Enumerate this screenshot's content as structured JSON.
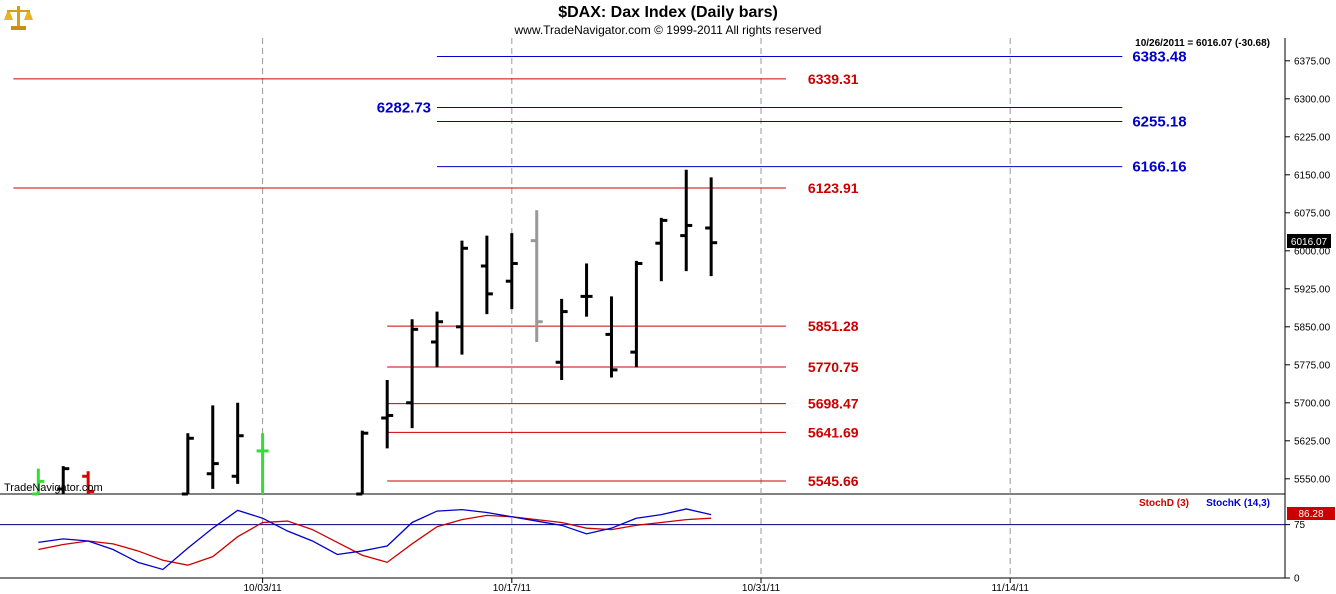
{
  "colors": {
    "background": "#ffffff",
    "red_level": "#cc0000",
    "blue_level": "#0000cc",
    "bar": "#000000",
    "bar_gray": "#999999",
    "up_tick": "#33dd33",
    "down_tick": "#dd0000",
    "stoch_d": "#cc0000",
    "stoch_k": "#0000cc",
    "grid": "#999999",
    "logo": "#d4a017"
  },
  "icons": {
    "logo": "scale-logo-icon"
  },
  "header": {
    "title": "$DAX:  Dax Index  (Daily bars)",
    "copyright": "www.TradeNavigator.com © 1999-2011 All rights reserved",
    "last_info": "10/26/2011 = 6016.07 (-30.68)"
  },
  "watermark": "TradeNavigator.com",
  "price_badge": "6016.07",
  "stoch_badge": "86.28",
  "chart_data": {
    "type": "ohlc",
    "title": "$DAX:  Dax Index  (Daily bars)",
    "y_ticks": [
      "6375.00",
      "6300.00",
      "6225.00",
      "6150.00",
      "6075.00",
      "6000.00",
      "5925.00",
      "5850.00",
      "5775.00",
      "5700.00",
      "5625.00",
      "5550.00"
    ],
    "y_tick_values": [
      6375,
      6300,
      6225,
      6150,
      6075,
      6000,
      5925,
      5850,
      5775,
      5700,
      5625,
      5550
    ],
    "y_range": [
      5520,
      6420
    ],
    "x_ticks": [
      {
        "label": "10/03/11",
        "index": 10
      },
      {
        "label": "10/17/11",
        "index": 20
      },
      {
        "label": "10/31/11",
        "index": 30
      },
      {
        "label": "11/14/11",
        "index": 40
      }
    ],
    "grid": true,
    "bars": [
      {
        "i": 1,
        "o": 5520,
        "h": 5570,
        "l": 5520,
        "c": 5545,
        "color": "up"
      },
      {
        "i": 2,
        "o": 5530,
        "h": 5575,
        "l": 5520,
        "c": 5570,
        "color": "normal"
      },
      {
        "i": 3,
        "o": 5555,
        "h": 5565,
        "l": 5520,
        "c": 5525,
        "color": "down"
      },
      {
        "i": 7,
        "o": 5520,
        "h": 5640,
        "l": 5520,
        "c": 5630,
        "color": "normal"
      },
      {
        "i": 8,
        "o": 5560,
        "h": 5695,
        "l": 5530,
        "c": 5580,
        "color": "normal"
      },
      {
        "i": 9,
        "o": 5555,
        "h": 5700,
        "l": 5540,
        "c": 5635,
        "color": "normal"
      },
      {
        "i": 10,
        "o": 5605,
        "h": 5640,
        "l": 5520,
        "c": 5605,
        "color": "up"
      },
      {
        "i": 14,
        "o": 5520,
        "h": 5645,
        "l": 5520,
        "c": 5640,
        "color": "normal"
      },
      {
        "i": 15,
        "o": 5670,
        "h": 5745,
        "l": 5610,
        "c": 5675,
        "color": "normal"
      },
      {
        "i": 16,
        "o": 5700,
        "h": 5865,
        "l": 5650,
        "c": 5845,
        "color": "normal"
      },
      {
        "i": 17,
        "o": 5820,
        "h": 5880,
        "l": 5770,
        "c": 5860,
        "color": "normal"
      },
      {
        "i": 18,
        "o": 5850,
        "h": 6020,
        "l": 5795,
        "c": 6005,
        "color": "normal"
      },
      {
        "i": 19,
        "o": 5970,
        "h": 6030,
        "l": 5875,
        "c": 5915,
        "color": "normal"
      },
      {
        "i": 20,
        "o": 5940,
        "h": 6035,
        "l": 5885,
        "c": 5975,
        "color": "normal"
      },
      {
        "i": 21,
        "o": 6020,
        "h": 6080,
        "l": 5820,
        "c": 5860,
        "color": "gray"
      },
      {
        "i": 22,
        "o": 5780,
        "h": 5905,
        "l": 5745,
        "c": 5880,
        "color": "normal"
      },
      {
        "i": 23,
        "o": 5910,
        "h": 5975,
        "l": 5870,
        "c": 5910,
        "color": "normal"
      },
      {
        "i": 24,
        "o": 5835,
        "h": 5910,
        "l": 5750,
        "c": 5765,
        "color": "normal"
      },
      {
        "i": 25,
        "o": 5800,
        "h": 5980,
        "l": 5770,
        "c": 5975,
        "color": "normal"
      },
      {
        "i": 26,
        "o": 6015,
        "h": 6065,
        "l": 5940,
        "c": 6060,
        "color": "normal"
      },
      {
        "i": 27,
        "o": 6030,
        "h": 6160,
        "l": 5960,
        "c": 6050,
        "color": "normal"
      },
      {
        "i": 28,
        "o": 6045,
        "h": 6145,
        "l": 5950,
        "c": 6016,
        "color": "normal"
      }
    ],
    "levels": [
      {
        "value": 6383.48,
        "label": "6383.48",
        "color": "blue",
        "from": 17,
        "to": 44.5,
        "label_side": "right"
      },
      {
        "value": 6339.31,
        "label": "6339.31",
        "color": "red",
        "from": 0,
        "to": 31,
        "label_side": "right"
      },
      {
        "value": 6282.73,
        "label": "6282.73",
        "color": "blue",
        "from": 17,
        "to": 44.5,
        "label_side": "left"
      },
      {
        "value": 6255.18,
        "label": "6255.18",
        "color": "blue",
        "from": 17,
        "to": 44.5,
        "label_side": "right"
      },
      {
        "value": 6166.16,
        "label": "6166.16",
        "color": "blue",
        "from": 17,
        "to": 44.5,
        "label_side": "right"
      },
      {
        "value": 6123.91,
        "label": "6123.91",
        "color": "red",
        "from": 0,
        "to": 31,
        "label_side": "right"
      },
      {
        "value": 5851.28,
        "label": "5851.28",
        "color": "red",
        "from": 15,
        "to": 31,
        "label_side": "right"
      },
      {
        "value": 5770.75,
        "label": "5770.75",
        "color": "red",
        "from": 15,
        "to": 31,
        "label_side": "right"
      },
      {
        "value": 5698.47,
        "label": "5698.47",
        "color": "red",
        "from": 15,
        "to": 31,
        "label_side": "right"
      },
      {
        "value": 5641.69,
        "label": "5641.69",
        "color": "red",
        "from": 15,
        "to": 31,
        "label_side": "right"
      },
      {
        "value": 5545.66,
        "label": "5545.66",
        "color": "red",
        "from": 15,
        "to": 31,
        "label_side": "right"
      }
    ],
    "indicator": {
      "series": [
        {
          "name": "StochD (3)",
          "color": "red",
          "x": [
            1,
            2,
            3,
            4,
            5,
            6,
            7,
            8,
            9,
            10,
            11,
            12,
            13,
            14,
            15,
            16,
            17,
            18,
            19,
            20,
            21,
            22,
            23,
            24,
            25,
            26,
            27,
            28
          ],
          "values": [
            40,
            47,
            52,
            48,
            38,
            25,
            18,
            30,
            58,
            78,
            80,
            68,
            50,
            32,
            22,
            48,
            72,
            82,
            88,
            86,
            82,
            78,
            70,
            68,
            74,
            78,
            82,
            84
          ]
        },
        {
          "name": "StochK (14,3)",
          "color": "blue",
          "x": [
            1,
            2,
            3,
            4,
            5,
            6,
            7,
            8,
            9,
            10,
            11,
            12,
            13,
            14,
            15,
            16,
            17,
            18,
            19,
            20,
            21,
            22,
            23,
            24,
            25,
            26,
            27,
            28
          ],
          "values": [
            50,
            55,
            52,
            40,
            22,
            12,
            42,
            70,
            95,
            84,
            66,
            52,
            33,
            38,
            45,
            78,
            94,
            96,
            92,
            86,
            80,
            74,
            62,
            70,
            84,
            89,
            97,
            89
          ]
        }
      ],
      "ticks": [
        "75",
        "0"
      ],
      "tick_values": [
        75,
        0
      ],
      "y_range": [
        0,
        118
      ],
      "reference": 75
    }
  }
}
